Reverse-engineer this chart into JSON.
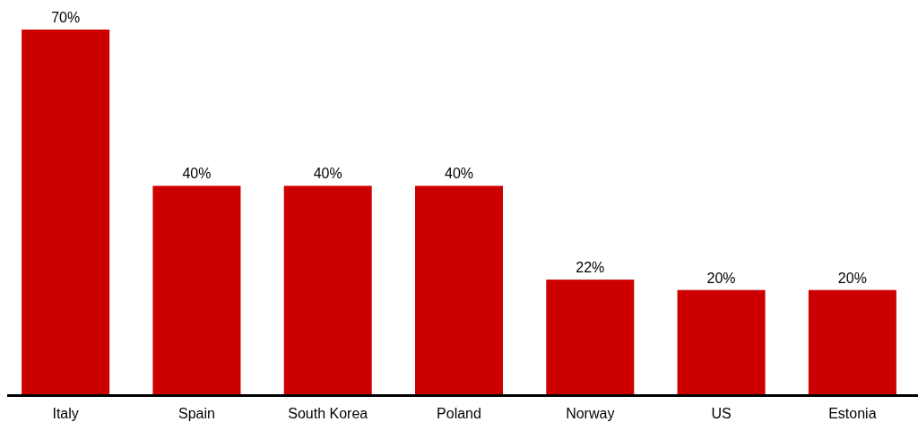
{
  "chart_data": {
    "type": "bar",
    "categories": [
      "Italy",
      "Spain",
      "South Korea",
      "Poland",
      "Norway",
      "US",
      "Estonia"
    ],
    "values": [
      70,
      40,
      40,
      40,
      22,
      20,
      20
    ],
    "value_labels": [
      "70%",
      "40%",
      "40%",
      "40%",
      "22%",
      "20%",
      "20%"
    ],
    "color": "#cc0000"
  }
}
